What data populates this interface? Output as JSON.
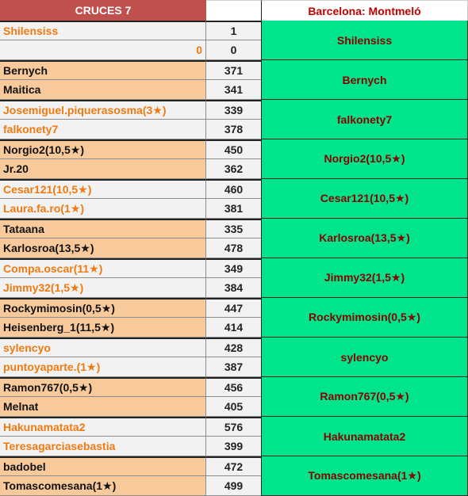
{
  "header": {
    "title": "CRUCES 7",
    "venue": "Barcelona: Montmeló"
  },
  "matches": [
    {
      "style": "orange",
      "bg": "odd",
      "players": [
        {
          "name": "Shilensiss",
          "score": "1"
        },
        {
          "name": "0",
          "score": "0",
          "align": "right"
        }
      ],
      "winner": "Shilensiss"
    },
    {
      "style": "black",
      "bg": "even",
      "players": [
        {
          "name": "Bernych",
          "score": "371"
        },
        {
          "name": "Maitica",
          "score": "341"
        }
      ],
      "winner": "Bernych"
    },
    {
      "style": "orange",
      "bg": "odd",
      "players": [
        {
          "name": "Josemiguel.piquerasosma(3★)",
          "score": "339"
        },
        {
          "name": "falkonety7",
          "score": "378"
        }
      ],
      "winner": "falkonety7"
    },
    {
      "style": "black",
      "bg": "even",
      "players": [
        {
          "name": "Norgio2(10,5★)",
          "score": "450"
        },
        {
          "name": "Jr.20",
          "score": "362"
        }
      ],
      "winner": "Norgio2(10,5★)"
    },
    {
      "style": "orange",
      "bg": "odd",
      "players": [
        {
          "name": "Cesar121(10,5★)",
          "score": "460"
        },
        {
          "name": "Laura.fa.ro(1★)",
          "score": "381"
        }
      ],
      "winner": "Cesar121(10,5★)"
    },
    {
      "style": "black",
      "bg": "even",
      "players": [
        {
          "name": "Tataana",
          "score": "335"
        },
        {
          "name": "Karlosroa(13,5★)",
          "score": "478"
        }
      ],
      "winner": "Karlosroa(13,5★)"
    },
    {
      "style": "orange",
      "bg": "odd",
      "players": [
        {
          "name": "Compa.oscar(11★)",
          "score": "349"
        },
        {
          "name": "Jimmy32(1,5★)",
          "score": "384"
        }
      ],
      "winner": "Jimmy32(1,5★)"
    },
    {
      "style": "black",
      "bg": "even",
      "players": [
        {
          "name": "Rockymimosin(0,5★)",
          "score": "447"
        },
        {
          "name": "Heisenberg_1(11,5★)",
          "score": "414"
        }
      ],
      "winner": "Rockymimosin(0,5★)"
    },
    {
      "style": "orange",
      "bg": "odd",
      "players": [
        {
          "name": "sylencyo",
          "score": "428"
        },
        {
          "name": "puntoyaparte.(1★)",
          "score": "387"
        }
      ],
      "winner": "sylencyo"
    },
    {
      "style": "black",
      "bg": "even",
      "players": [
        {
          "name": "Ramon767(0,5★)",
          "score": "456"
        },
        {
          "name": "Melnat",
          "score": "405"
        }
      ],
      "winner": "Ramon767(0,5★)"
    },
    {
      "style": "orange",
      "bg": "odd",
      "players": [
        {
          "name": "Hakunamatata2",
          "score": "576"
        },
        {
          "name": "Teresagarciasebastia",
          "score": "399"
        }
      ],
      "winner": "Hakunamatata2"
    },
    {
      "style": "black",
      "bg": "even",
      "players": [
        {
          "name": "badobel",
          "score": "472"
        },
        {
          "name": "Tomascomesana(1★)",
          "score": "499"
        }
      ],
      "winner": "Tomascomesana(1★)"
    }
  ],
  "colors": {
    "header_bg": "#c0504d",
    "winner_bg": "#00e58c",
    "winner_text": "#8b0000",
    "orange_text": "#f07a10",
    "orange_row_bg": "#f8c99a"
  }
}
